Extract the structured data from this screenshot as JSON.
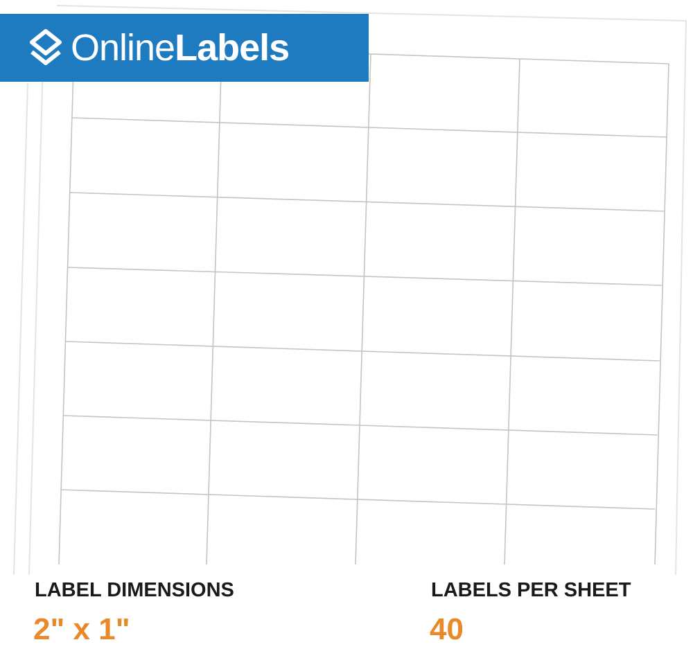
{
  "brand": {
    "name_light": "Online",
    "name_bold": "Labels",
    "color": "#1f7bbf",
    "icon": "stacked-layers-icon"
  },
  "specs": [
    {
      "label": "LABEL DIMENSIONS",
      "value": "2\" x 1\""
    },
    {
      "label": "LABELS PER SHEET",
      "value": "40"
    }
  ],
  "accent_color": "#e8892a"
}
